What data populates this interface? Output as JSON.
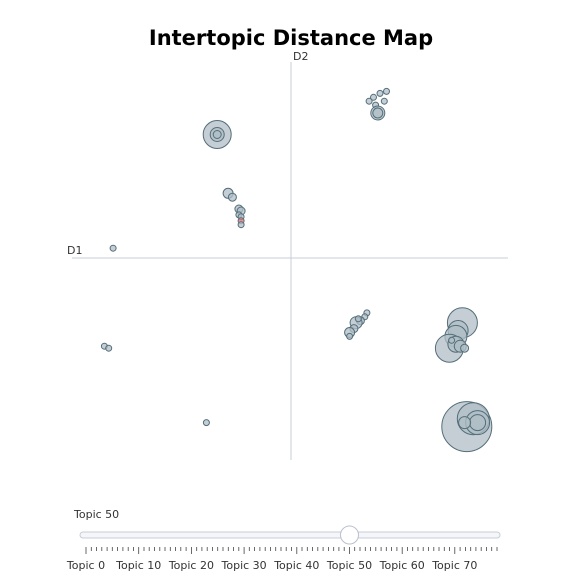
{
  "chart_data": {
    "type": "scatter",
    "title": "Intertopic Distance Map",
    "xlabel": "D1",
    "ylabel": "D2",
    "xlim": [
      -1,
      1
    ],
    "ylim": [
      -1,
      1
    ],
    "grid": false,
    "marker_color": "#b0bec5",
    "marker_edge": "#546e7a",
    "highlight_color": "#e57373",
    "points": [
      {
        "x": 0.38,
        "y": 0.82,
        "r": 3
      },
      {
        "x": 0.41,
        "y": 0.84,
        "r": 3
      },
      {
        "x": 0.44,
        "y": 0.85,
        "r": 3
      },
      {
        "x": 0.36,
        "y": 0.8,
        "r": 3
      },
      {
        "x": 0.39,
        "y": 0.78,
        "r": 3
      },
      {
        "x": 0.43,
        "y": 0.8,
        "r": 3
      },
      {
        "x": 0.4,
        "y": 0.74,
        "r": 7
      },
      {
        "x": 0.4,
        "y": 0.74,
        "r": 5
      },
      {
        "x": -0.34,
        "y": 0.63,
        "r": 14
      },
      {
        "x": -0.34,
        "y": 0.63,
        "r": 7
      },
      {
        "x": -0.34,
        "y": 0.63,
        "r": 4
      },
      {
        "x": -0.29,
        "y": 0.33,
        "r": 5
      },
      {
        "x": -0.27,
        "y": 0.31,
        "r": 4
      },
      {
        "x": -0.24,
        "y": 0.25,
        "r": 4
      },
      {
        "x": -0.23,
        "y": 0.24,
        "r": 4
      },
      {
        "x": -0.24,
        "y": 0.22,
        "r": 3
      },
      {
        "x": -0.23,
        "y": 0.21,
        "r": 3
      },
      {
        "x": -0.23,
        "y": 0.19,
        "r": 3,
        "highlight": true
      },
      {
        "x": -0.23,
        "y": 0.17,
        "r": 3
      },
      {
        "x": -0.82,
        "y": 0.05,
        "r": 3
      },
      {
        "x": 0.35,
        "y": -0.28,
        "r": 3
      },
      {
        "x": 0.34,
        "y": -0.3,
        "r": 3
      },
      {
        "x": 0.32,
        "y": -0.32,
        "r": 4
      },
      {
        "x": 0.3,
        "y": -0.33,
        "r": 6
      },
      {
        "x": 0.29,
        "y": -0.36,
        "r": 4
      },
      {
        "x": 0.27,
        "y": -0.38,
        "r": 5
      },
      {
        "x": 0.27,
        "y": -0.4,
        "r": 3
      },
      {
        "x": 0.31,
        "y": -0.31,
        "r": 3
      },
      {
        "x": 0.79,
        "y": -0.33,
        "r": 15
      },
      {
        "x": 0.77,
        "y": -0.37,
        "r": 10
      },
      {
        "x": 0.76,
        "y": -0.4,
        "r": 11
      },
      {
        "x": 0.73,
        "y": -0.46,
        "r": 14
      },
      {
        "x": 0.76,
        "y": -0.44,
        "r": 8
      },
      {
        "x": 0.78,
        "y": -0.45,
        "r": 6
      },
      {
        "x": 0.8,
        "y": -0.46,
        "r": 4
      },
      {
        "x": 0.74,
        "y": -0.42,
        "r": 3
      },
      {
        "x": -0.86,
        "y": -0.45,
        "r": 3
      },
      {
        "x": -0.84,
        "y": -0.46,
        "r": 3
      },
      {
        "x": -0.39,
        "y": -0.84,
        "r": 3
      },
      {
        "x": 0.81,
        "y": -0.86,
        "r": 25
      },
      {
        "x": 0.84,
        "y": -0.82,
        "r": 16
      },
      {
        "x": 0.86,
        "y": -0.84,
        "r": 12
      },
      {
        "x": 0.86,
        "y": -0.84,
        "r": 8
      },
      {
        "x": 0.8,
        "y": -0.84,
        "r": 6
      }
    ]
  },
  "slider": {
    "current_label": "Topic 50",
    "value": 50,
    "min": 0,
    "max": 78,
    "tick_labels": [
      "Topic 0",
      "Topic 10",
      "Topic 20",
      "Topic 30",
      "Topic 40",
      "Topic 50",
      "Topic 60",
      "Topic 70"
    ],
    "track_color": "#f4f6f9",
    "handle_color": "#ffffff"
  }
}
